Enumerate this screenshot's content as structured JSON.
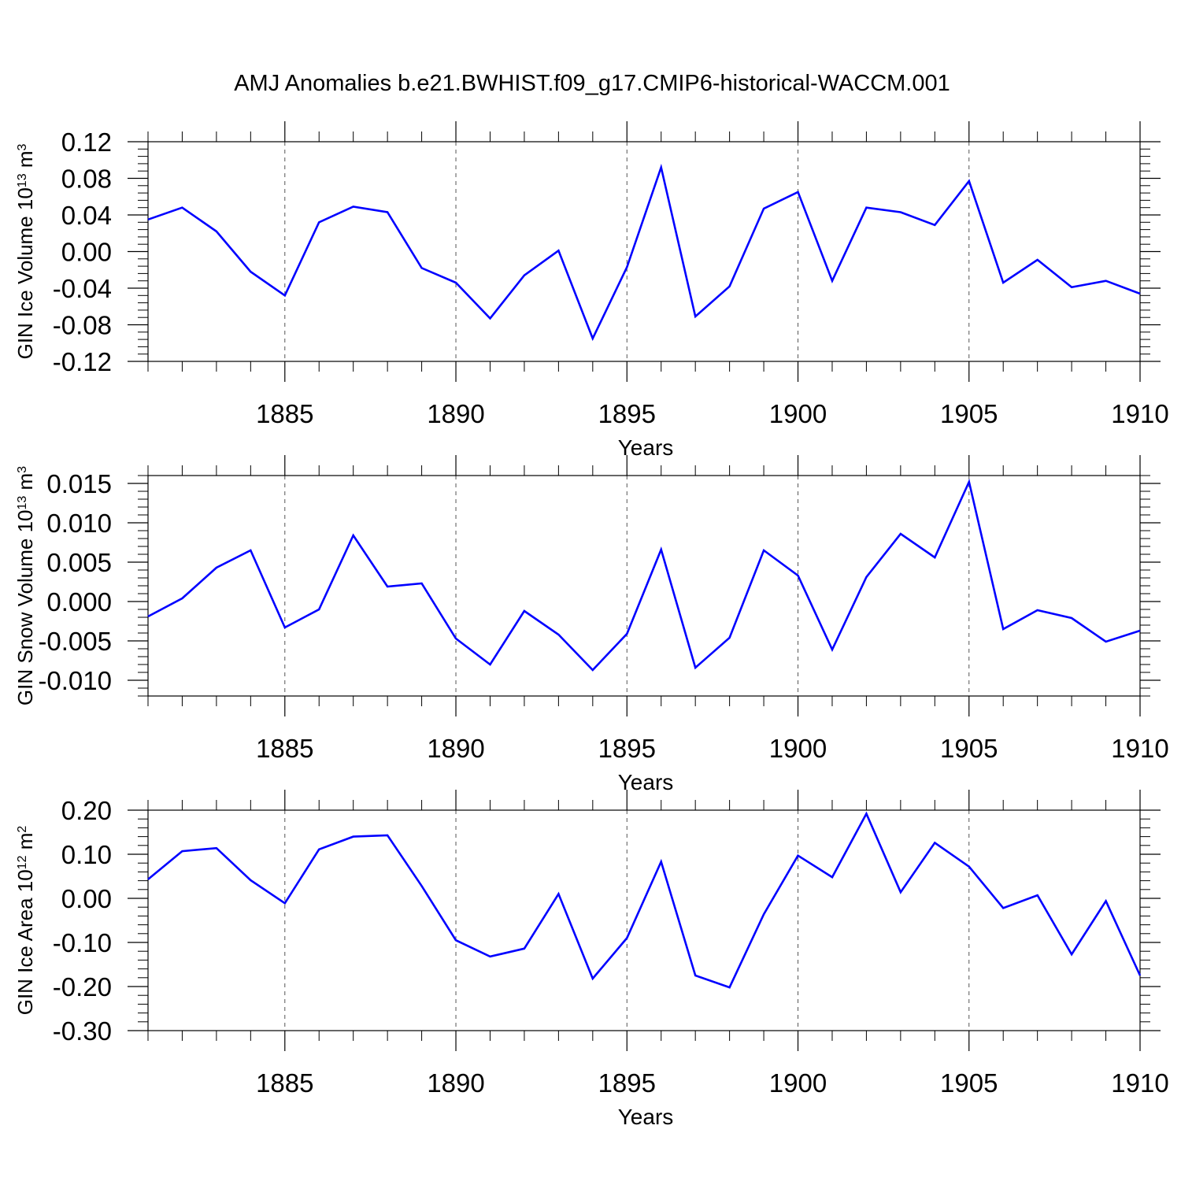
{
  "title": "AMJ Anomalies b.e21.BWHIST.f09_g17.CMIP6-historical-WACCM.001",
  "colors": {
    "line": "#0000ff",
    "axis": "#000000",
    "grid": "#555555"
  },
  "chart_data": [
    {
      "type": "line",
      "xlabel": "Years",
      "ylabel": {
        "text": "GIN Ice Volume 10",
        "sup": "13",
        "unit": " m",
        "unit_sup": "3"
      },
      "x": [
        1881,
        1882,
        1883,
        1884,
        1885,
        1886,
        1887,
        1888,
        1889,
        1890,
        1891,
        1892,
        1893,
        1894,
        1895,
        1896,
        1897,
        1898,
        1899,
        1900,
        1901,
        1902,
        1903,
        1904,
        1905,
        1906,
        1907,
        1908,
        1909,
        1910
      ],
      "values": [
        0.035,
        0.048,
        0.022,
        -0.022,
        -0.048,
        0.032,
        0.049,
        0.043,
        -0.018,
        -0.034,
        -0.073,
        -0.026,
        0.001,
        -0.095,
        -0.017,
        0.092,
        -0.071,
        -0.038,
        0.047,
        0.065,
        -0.032,
        0.048,
        0.043,
        0.029,
        0.077,
        -0.034,
        -0.009,
        -0.039,
        -0.032,
        -0.046
      ],
      "xlim": [
        1881,
        1910
      ],
      "ylim": [
        -0.12,
        0.12
      ],
      "yticks": [
        "0.12",
        "0.08",
        "0.04",
        "0.00",
        "-0.04",
        "-0.08",
        "-0.12"
      ],
      "ytick_values": [
        0.12,
        0.08,
        0.04,
        0.0,
        -0.04,
        -0.08,
        -0.12
      ],
      "xticks": [
        "1885",
        "1890",
        "1895",
        "1900",
        "1905",
        "1910"
      ],
      "xtick_values": [
        1885,
        1890,
        1895,
        1900,
        1905,
        1910
      ],
      "grid": "vertical dashed at major x ticks"
    },
    {
      "type": "line",
      "xlabel": "Years",
      "ylabel": {
        "text": "GIN Snow Volume 10",
        "sup": "13",
        "unit": " m",
        "unit_sup": "3"
      },
      "x": [
        1881,
        1882,
        1883,
        1884,
        1885,
        1886,
        1887,
        1888,
        1889,
        1890,
        1891,
        1892,
        1893,
        1894,
        1895,
        1896,
        1897,
        1898,
        1899,
        1900,
        1901,
        1902,
        1903,
        1904,
        1905,
        1906,
        1907,
        1908,
        1909,
        1910
      ],
      "values": [
        -0.0019,
        0.0004,
        0.0043,
        0.0065,
        -0.0033,
        -0.001,
        0.0084,
        0.0019,
        0.0023,
        -0.0047,
        -0.008,
        -0.0012,
        -0.0042,
        -0.0087,
        -0.0041,
        0.0066,
        -0.0084,
        -0.0046,
        0.0065,
        0.0033,
        -0.0061,
        0.0031,
        0.0086,
        0.0056,
        0.0152,
        -0.0035,
        -0.0011,
        -0.0021,
        -0.0051,
        -0.0037
      ],
      "xlim": [
        1881,
        1910
      ],
      "ylim": [
        -0.012,
        0.016
      ],
      "yticks": [
        "0.015",
        "0.010",
        "0.005",
        "0.000",
        "-0.005",
        "-0.010"
      ],
      "ytick_values": [
        0.015,
        0.01,
        0.005,
        0.0,
        -0.005,
        -0.01
      ],
      "xticks": [
        "1885",
        "1890",
        "1895",
        "1900",
        "1905",
        "1910"
      ],
      "xtick_values": [
        1885,
        1890,
        1895,
        1900,
        1905,
        1910
      ],
      "grid": "vertical dashed at major x ticks"
    },
    {
      "type": "line",
      "xlabel": "Years",
      "ylabel": {
        "text": "GIN Ice Area 10",
        "sup": "12",
        "unit": " m",
        "unit_sup": "2"
      },
      "x": [
        1881,
        1882,
        1883,
        1884,
        1885,
        1886,
        1887,
        1888,
        1889,
        1890,
        1891,
        1892,
        1893,
        1894,
        1895,
        1896,
        1897,
        1898,
        1899,
        1900,
        1901,
        1902,
        1903,
        1904,
        1905,
        1906,
        1907,
        1908,
        1909,
        1910
      ],
      "values": [
        0.043,
        0.107,
        0.114,
        0.041,
        -0.011,
        0.111,
        0.14,
        0.143,
        0.028,
        -0.095,
        -0.132,
        -0.114,
        0.01,
        -0.182,
        -0.09,
        0.083,
        -0.175,
        -0.202,
        -0.036,
        0.097,
        0.048,
        0.192,
        0.014,
        0.126,
        0.072,
        -0.022,
        0.007,
        -0.127,
        -0.006,
        -0.175
      ],
      "xlim": [
        1881,
        1910
      ],
      "ylim": [
        -0.3,
        0.2
      ],
      "yticks": [
        "0.20",
        "0.10",
        "0.00",
        "-0.10",
        "-0.20",
        "-0.30"
      ],
      "ytick_values": [
        0.2,
        0.1,
        0.0,
        -0.1,
        -0.2,
        -0.3
      ],
      "xticks": [
        "1885",
        "1890",
        "1895",
        "1900",
        "1905",
        "1910"
      ],
      "xtick_values": [
        1885,
        1890,
        1895,
        1900,
        1905,
        1910
      ],
      "grid": "vertical dashed at major x ticks"
    }
  ]
}
